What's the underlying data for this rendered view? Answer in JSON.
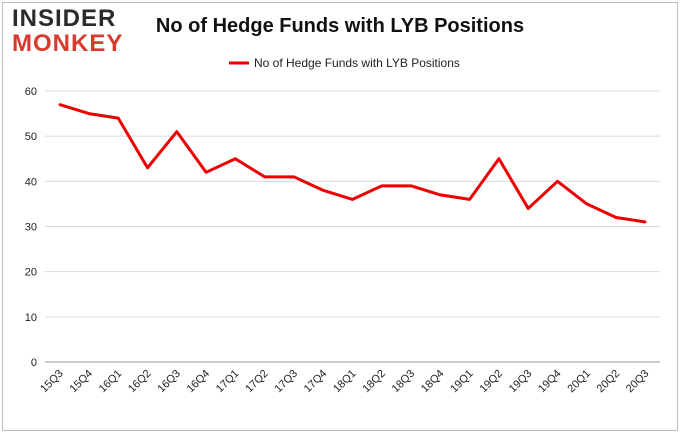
{
  "logo": {
    "line1": "INSIDER",
    "line2": "MONKEY"
  },
  "chart_data": {
    "type": "line",
    "title": "No of Hedge Funds with LYB Positions",
    "xlabel": "",
    "ylabel": "",
    "categories": [
      "15Q3",
      "15Q4",
      "16Q1",
      "16Q2",
      "16Q3",
      "16Q4",
      "17Q1",
      "17Q2",
      "17Q3",
      "17Q4",
      "18Q1",
      "18Q2",
      "18Q3",
      "18Q4",
      "19Q1",
      "19Q2",
      "19Q3",
      "19Q4",
      "20Q1",
      "20Q2",
      "20Q3"
    ],
    "series": [
      {
        "name": "No of Hedge Funds with LYB Positions",
        "color": "#ee0000",
        "values": [
          57,
          55,
          54,
          43,
          51,
          42,
          45,
          41,
          41,
          38,
          36,
          39,
          39,
          37,
          36,
          45,
          34,
          40,
          35,
          32,
          31
        ]
      }
    ],
    "ylim": [
      0,
      60
    ],
    "yticks": [
      0,
      10,
      20,
      30,
      40,
      50,
      60
    ],
    "grid": true,
    "legend_position": "top"
  }
}
